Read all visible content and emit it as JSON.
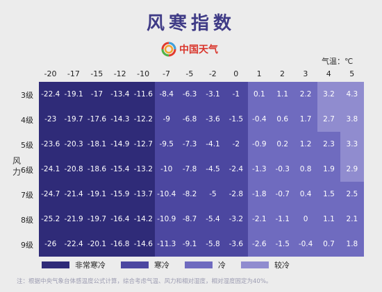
{
  "title": "风寒指数",
  "brand": {
    "name": "中国天气"
  },
  "unit_label": "气温：℃",
  "y_axis_label": "风力",
  "colors": {
    "very_cold": "#2f2b78",
    "cold": "#4c47a0",
    "cool": "#6f6bbf",
    "cooler": "#908ccf",
    "title": "#3f3b86"
  },
  "legend": [
    {
      "label": "非常寒冷",
      "color": "#2f2b78"
    },
    {
      "label": "寒冷",
      "color": "#4c47a0"
    },
    {
      "label": "冷",
      "color": "#6f6bbf"
    },
    {
      "label": "较冷",
      "color": "#908ccf"
    }
  ],
  "note": "注：根据中央气象台体感温度公式计算，综合考虑气温、风力和相对湿度，相对湿度固定为40%。",
  "chart_data": {
    "type": "heatmap",
    "title": "风寒指数",
    "x": [
      "-20",
      "-17",
      "-15",
      "-12",
      "-10",
      "-7",
      "-5",
      "-2",
      "0",
      "1",
      "2",
      "3",
      "4",
      "5"
    ],
    "y": [
      "3级",
      "4级",
      "5级",
      "6级",
      "7级",
      "8级",
      "9级"
    ],
    "ylabel": "风力",
    "xlabel": "气温：℃",
    "values": [
      [
        "-22.4",
        "-19.1",
        "-17",
        "-13.4",
        "-11.6",
        "-8.4",
        "-6.3",
        "-3.1",
        "-1",
        "0.1",
        "1.1",
        "2.2",
        "3.2",
        "4.3"
      ],
      [
        "-23",
        "-19.7",
        "-17.6",
        "-14.3",
        "-12.2",
        "-9",
        "-6.8",
        "-3.6",
        "-1.5",
        "-0.4",
        "0.6",
        "1.7",
        "2.7",
        "3.8"
      ],
      [
        "-23.6",
        "-20.3",
        "-18.1",
        "-14.9",
        "-12.7",
        "-9.5",
        "-7.3",
        "-4.1",
        "-2",
        "-0.9",
        "0.2",
        "1.2",
        "2.3",
        "3.3"
      ],
      [
        "-24.1",
        "-20.8",
        "-18.6",
        "-15.4",
        "-13.2",
        "-10",
        "-7.8",
        "-4.5",
        "-2.4",
        "-1.3",
        "-0.3",
        "0.8",
        "1.9",
        "2.9"
      ],
      [
        "-24.7",
        "-21.4",
        "-19.1",
        "-15.9",
        "-13.7",
        "-10.4",
        "-8.2",
        "-5",
        "-2.8",
        "-1.8",
        "-0.7",
        "0.4",
        "1.5",
        "2.5"
      ],
      [
        "-25.2",
        "-21.9",
        "-19.7",
        "-16.4",
        "-14.2",
        "-10.9",
        "-8.7",
        "-5.4",
        "-3.2",
        "-2.1",
        "-1.1",
        "0",
        "1.1",
        "2.1"
      ],
      [
        "-26",
        "-22.4",
        "-20.1",
        "-16.8",
        "-14.6",
        "-11.3",
        "-9.1",
        "-5.8",
        "-3.6",
        "-2.6",
        "-1.5",
        "-0.4",
        "0.7",
        "1.8"
      ]
    ],
    "legend": [
      "非常寒冷",
      "寒冷",
      "冷",
      "较冷"
    ],
    "categories_grid": [
      [
        "very_cold",
        "very_cold",
        "very_cold",
        "very_cold",
        "very_cold",
        "cold",
        "cold",
        "cold",
        "cold",
        "cool",
        "cool",
        "cool",
        "cooler",
        "cooler"
      ],
      [
        "very_cold",
        "very_cold",
        "very_cold",
        "very_cold",
        "very_cold",
        "cold",
        "cold",
        "cold",
        "cold",
        "cool",
        "cool",
        "cool",
        "cooler",
        "cooler"
      ],
      [
        "very_cold",
        "very_cold",
        "very_cold",
        "very_cold",
        "very_cold",
        "cold",
        "cold",
        "cold",
        "cold",
        "cool",
        "cool",
        "cool",
        "cool",
        "cooler"
      ],
      [
        "very_cold",
        "very_cold",
        "very_cold",
        "very_cold",
        "very_cold",
        "cold",
        "cold",
        "cold",
        "cold",
        "cool",
        "cool",
        "cool",
        "cool",
        "cooler"
      ],
      [
        "very_cold",
        "very_cold",
        "very_cold",
        "very_cold",
        "very_cold",
        "cold",
        "cold",
        "cold",
        "cold",
        "cool",
        "cool",
        "cool",
        "cool",
        "cool"
      ],
      [
        "very_cold",
        "very_cold",
        "very_cold",
        "very_cold",
        "very_cold",
        "cold",
        "cold",
        "cold",
        "cold",
        "cool",
        "cool",
        "cool",
        "cool",
        "cool"
      ],
      [
        "very_cold",
        "very_cold",
        "very_cold",
        "very_cold",
        "very_cold",
        "cold",
        "cold",
        "cold",
        "cold",
        "cool",
        "cool",
        "cool",
        "cool",
        "cool"
      ]
    ]
  }
}
